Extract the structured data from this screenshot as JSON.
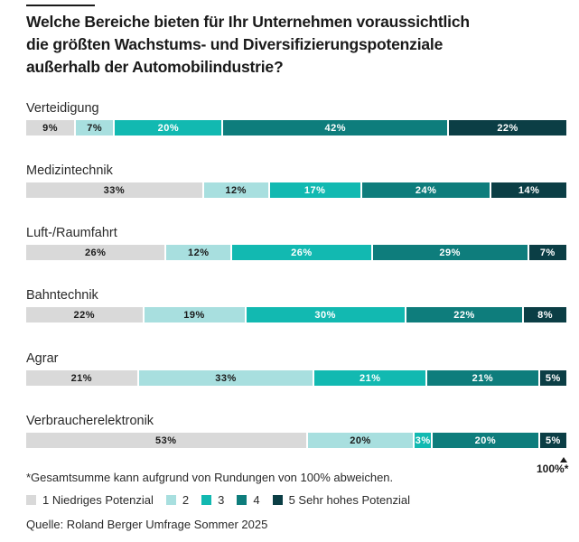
{
  "title_lines": [
    "Welche Bereiche bieten für Ihr Unternehmen voraussichtlich",
    "die größten Wachstums- und Diversifizierungspotenziale",
    "außerhalb der Automobilindustrie?"
  ],
  "chart_data": {
    "type": "bar",
    "orientation": "horizontal",
    "stacked": true,
    "title": "Welche Bereiche bieten für Ihr Unternehmen voraussichtlich die größten Wachstums- und Diversifizierungspotenziale außerhalb der Automobilindustrie?",
    "categories": [
      "Verteidigung",
      "Medizintechnik",
      "Luft-/Raumfahrt",
      "Bahntechnik",
      "Agrar",
      "Verbraucherelektronik"
    ],
    "unit": "%",
    "series": [
      {
        "name": "1 Niedriges Potenzial",
        "color": "#d9d9d9",
        "text_color": "#1a1a1a",
        "values": [
          9,
          33,
          26,
          22,
          21,
          53
        ]
      },
      {
        "name": "2",
        "color": "#a8dfdf",
        "text_color": "#1a1a1a",
        "values": [
          7,
          12,
          12,
          19,
          33,
          20
        ]
      },
      {
        "name": "3",
        "color": "#12b9b1",
        "text_color": "#ffffff",
        "values": [
          20,
          17,
          26,
          30,
          21,
          3
        ]
      },
      {
        "name": "4",
        "color": "#0e7d7c",
        "text_color": "#ffffff",
        "values": [
          42,
          24,
          29,
          22,
          21,
          20
        ]
      },
      {
        "name": "5 Sehr hohes Potenzial",
        "color": "#0b3e45",
        "text_color": "#ffffff",
        "values": [
          22,
          14,
          7,
          8,
          5,
          5
        ]
      }
    ],
    "legend": "bottom",
    "grid": false
  },
  "total_marker": "100%*",
  "footnote": "*Gesamtsumme kann aufgrund von Rundungen von 100% abweichen.",
  "source": "Quelle: Roland Berger Umfrage Sommer 2025"
}
